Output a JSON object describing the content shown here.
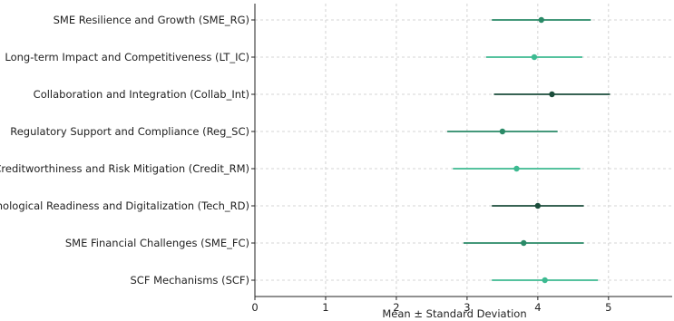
{
  "chart_data": {
    "type": "errorbar",
    "orientation": "horizontal",
    "xlabel": "Mean ± Standard Deviation",
    "xlim": [
      0,
      5.9
    ],
    "xticks": [
      "0",
      "1",
      "2",
      "3",
      "4",
      "5"
    ],
    "grid": true,
    "categories": [
      "SME Resilience and Growth (SME_RG)",
      "Long-term Impact and Competitiveness (LT_IC)",
      "Collaboration and Integration (Collab_Int)",
      "Regulatory Support and Compliance (Reg_SC)",
      "Creditworthiness and Risk Mitigation (Credit_RM)",
      "Technological Readiness and Digitalization (Tech_RD)",
      "SME Financial Challenges (SME_FC)",
      "SCF Mechanisms (SCF)"
    ],
    "means": [
      4.05,
      3.95,
      4.2,
      3.5,
      3.7,
      4.0,
      3.8,
      4.1
    ],
    "std": [
      0.7,
      0.68,
      0.82,
      0.78,
      0.9,
      0.65,
      0.85,
      0.75
    ],
    "colors": [
      "#2a8a67",
      "#3dba91",
      "#1b4d3b",
      "#2a8a67",
      "#3dba91",
      "#1b4d3b",
      "#2a8a67",
      "#3dba91"
    ]
  }
}
